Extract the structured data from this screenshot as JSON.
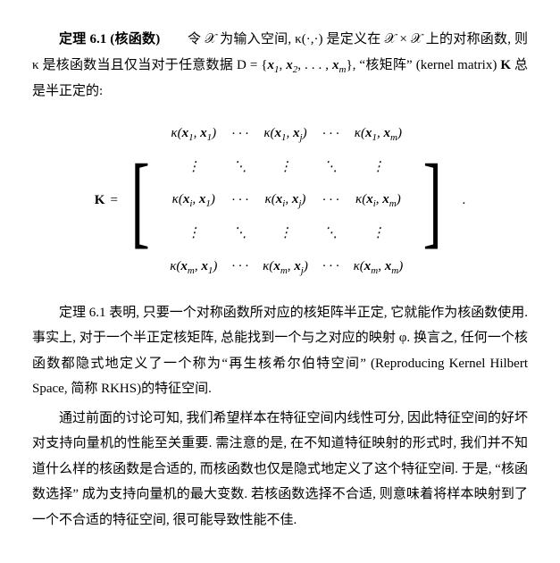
{
  "theorem_label_a": "定理 6.1 (核函数)",
  "theorem_body_rest": "　　令 𝒳 为输入空间, κ(·,·) 是定义在 𝒳 × 𝒳 上的对称函数, 则 κ 是核函数当且仅当对于任意数据 D = {",
  "theorem_x1": "x",
  "theorem_sub1": "1",
  "theorem_comma1": ", ",
  "theorem_x2": "x",
  "theorem_sub2": "2",
  "theorem_comma2": ", . . . , ",
  "theorem_xm": "x",
  "theorem_subm": "m",
  "theorem_close": "}, “核矩阵” (kernel matrix) ",
  "theorem_K": "K",
  "theorem_tail": " 总是半正定的:",
  "matrix_K": "K",
  "matrix_eq": " = ",
  "matrix_period": ".",
  "m11_k": "κ(",
  "m11_x1": "x",
  "m11_s1": "1",
  "m11_c": ", ",
  "m11_x2": "x",
  "m11_s2": "1",
  "m11_e": ")",
  "m13_k": "κ(",
  "m13_x1": "x",
  "m13_s1": "1",
  "m13_c": ", ",
  "m13_x2": "x",
  "m13_s2": "j",
  "m13_e": ")",
  "m15_k": "κ(",
  "m15_x1": "x",
  "m15_s1": "1",
  "m15_c": ", ",
  "m15_x2": "x",
  "m15_s2": "m",
  "m15_e": ")",
  "m31_k": "κ(",
  "m31_x1": "x",
  "m31_s1": "i",
  "m31_c": ", ",
  "m31_x2": "x",
  "m31_s2": "1",
  "m31_e": ")",
  "m33_k": "κ(",
  "m33_x1": "x",
  "m33_s1": "i",
  "m33_c": ", ",
  "m33_x2": "x",
  "m33_s2": "j",
  "m33_e": ")",
  "m35_k": "κ(",
  "m35_x1": "x",
  "m35_s1": "i",
  "m35_c": ", ",
  "m35_x2": "x",
  "m35_s2": "m",
  "m35_e": ")",
  "m51_k": "κ(",
  "m51_x1": "x",
  "m51_s1": "m",
  "m51_c": ", ",
  "m51_x2": "x",
  "m51_s2": "1",
  "m51_e": ")",
  "m53_k": "κ(",
  "m53_x1": "x",
  "m53_s1": "m",
  "m53_c": ", ",
  "m53_x2": "x",
  "m53_s2": "j",
  "m53_e": ")",
  "m55_k": "κ(",
  "m55_x1": "x",
  "m55_s1": "m",
  "m55_c": ", ",
  "m55_x2": "x",
  "m55_s2": "m",
  "m55_e": ")",
  "cdots": "· · ·",
  "vdots": "⋮",
  "ddots": "⋱",
  "para2": "定理 6.1 表明, 只要一个对称函数所对应的核矩阵半正定, 它就能作为核函数使用. 事实上, 对于一个半正定核矩阵, 总能找到一个与之对应的映射 φ. 换言之, 任何一个核函数都隐式地定义了一个称为“再生核希尔伯特空间” (Reproducing Kernel Hilbert Space, 简称 RKHS)的特征空间.",
  "para3": "通过前面的讨论可知, 我们希望样本在特征空间内线性可分, 因此特征空间的好坏对支持向量机的性能至关重要. 需注意的是, 在不知道特征映射的形式时, 我们并不知道什么样的核函数是合适的, 而核函数也仅是隐式地定义了这个特征空间. 于是, “核函数选择” 成为支持向量机的最大变数. 若核函数选择不合适, 则意味着将样本映射到了一个不合适的特征空间, 很可能导致性能不佳."
}
